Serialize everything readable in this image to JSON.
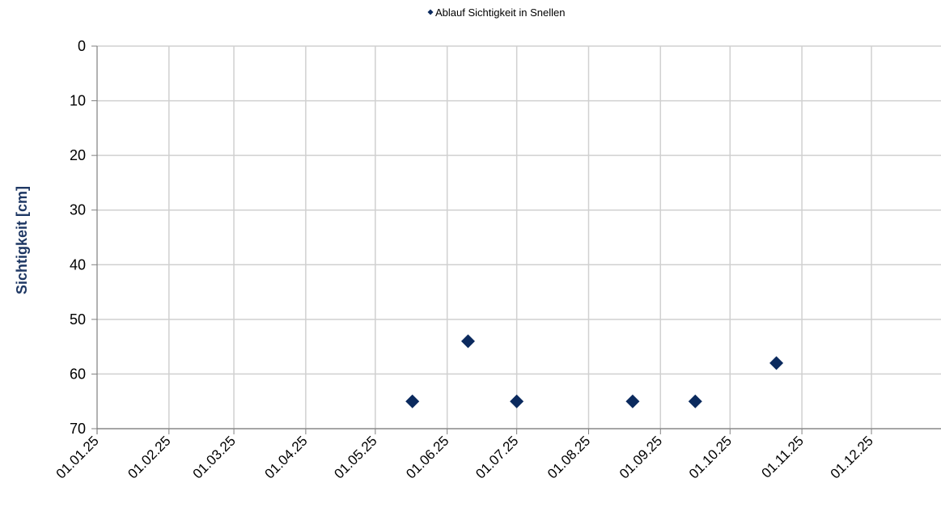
{
  "chart_data": {
    "type": "scatter",
    "title": "",
    "xlabel": "",
    "ylabel": "Sichtigkeit [cm]",
    "y_inverted": true,
    "ylim": [
      0,
      70
    ],
    "y_ticks": [
      "0",
      "10",
      "20",
      "30",
      "40",
      "50",
      "60",
      "70"
    ],
    "x_ticks": [
      "01.01.25",
      "01.02.25",
      "01.03.25",
      "01.04.25",
      "01.05.25",
      "01.06.25",
      "01.07.25",
      "01.08.25",
      "01.09.25",
      "01.10.25",
      "01.11.25",
      "01.12.25"
    ],
    "xlim": [
      "01.01.25",
      "31.12.25"
    ],
    "grid": true,
    "legend_position": "top-center",
    "series": [
      {
        "name": "Ablauf Sichtigkeit in Snellen",
        "marker": "diamond",
        "color": "#0b2a5e",
        "points": [
          {
            "x": "17.05.25",
            "y": 65
          },
          {
            "x": "10.06.25",
            "y": 54
          },
          {
            "x": "01.07.25",
            "y": 65
          },
          {
            "x": "20.08.25",
            "y": 65
          },
          {
            "x": "16.09.25",
            "y": 65
          },
          {
            "x": "21.10.25",
            "y": 58
          }
        ]
      }
    ],
    "colors": {
      "axis_label": "#1f3864",
      "grid": "#d0d0d0",
      "axis": "#808080"
    }
  }
}
